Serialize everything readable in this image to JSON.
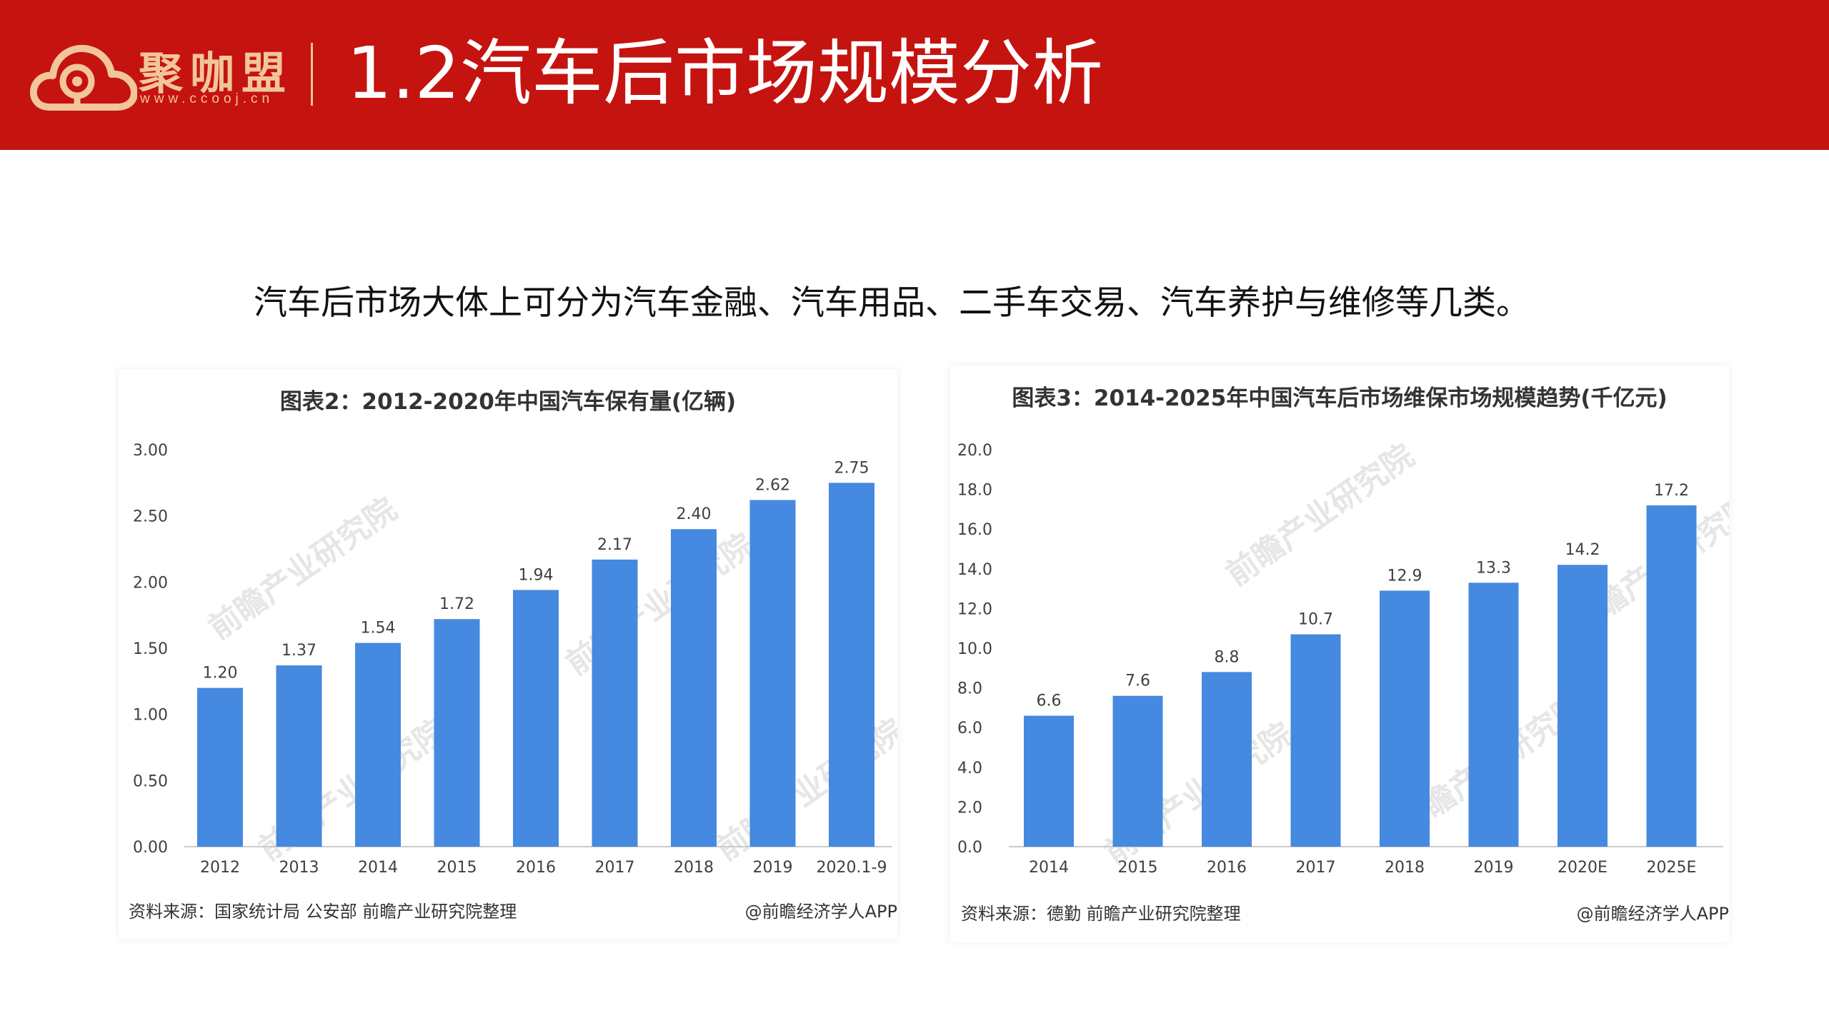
{
  "header": {
    "brand": "聚咖盟",
    "brand_url": "www.ccooj.cn",
    "title": "1.2汽车后市场规模分析",
    "bg_color": "#c5130f",
    "brand_color": "#f2c59a"
  },
  "subtitle": "汽车后市场大体上可分为汽车金融、汽车用品、二手车交易、汽车养护与维修等几类。",
  "colors": {
    "bar": "#4589e0",
    "axis": "#cccccc",
    "text": "#404040"
  },
  "chart_data": [
    {
      "type": "bar",
      "title": "图表2：2012-2020年中国汽车保有量(亿辆)",
      "categories": [
        "2012",
        "2013",
        "2014",
        "2015",
        "2016",
        "2017",
        "2018",
        "2019",
        "2020.1-9"
      ],
      "values": [
        1.2,
        1.37,
        1.54,
        1.72,
        1.94,
        2.17,
        2.4,
        2.62,
        2.75
      ],
      "value_labels": [
        "1.20",
        "1.37",
        "1.54",
        "1.72",
        "1.94",
        "2.17",
        "2.40",
        "2.62",
        "2.75"
      ],
      "ylim": [
        0,
        3.0
      ],
      "yticks": [
        "0.00",
        "0.50",
        "1.00",
        "1.50",
        "2.00",
        "2.50",
        "3.00"
      ],
      "source": "资料来源：国家统计局 公安部 前瞻产业研究院整理",
      "credit": "@前瞻经济学人APP",
      "watermark": "前瞻产业研究院"
    },
    {
      "type": "bar",
      "title": "图表3：2014-2025年中国汽车后市场维保市场规模趋势(千亿元)",
      "categories": [
        "2014",
        "2015",
        "2016",
        "2017",
        "2018",
        "2019",
        "2020E",
        "2025E"
      ],
      "values": [
        6.6,
        7.6,
        8.8,
        10.7,
        12.9,
        13.3,
        14.2,
        17.2
      ],
      "value_labels": [
        "6.6",
        "7.6",
        "8.8",
        "10.7",
        "12.9",
        "13.3",
        "14.2",
        "17.2"
      ],
      "ylim": [
        0,
        20.0
      ],
      "yticks": [
        "0.0",
        "2.0",
        "4.0",
        "6.0",
        "8.0",
        "10.0",
        "12.0",
        "14.0",
        "16.0",
        "18.0",
        "20.0"
      ],
      "source": "资料来源：德勤 前瞻产业研究院整理",
      "credit": "@前瞻经济学人APP",
      "watermark": "前瞻产业研究院"
    }
  ]
}
